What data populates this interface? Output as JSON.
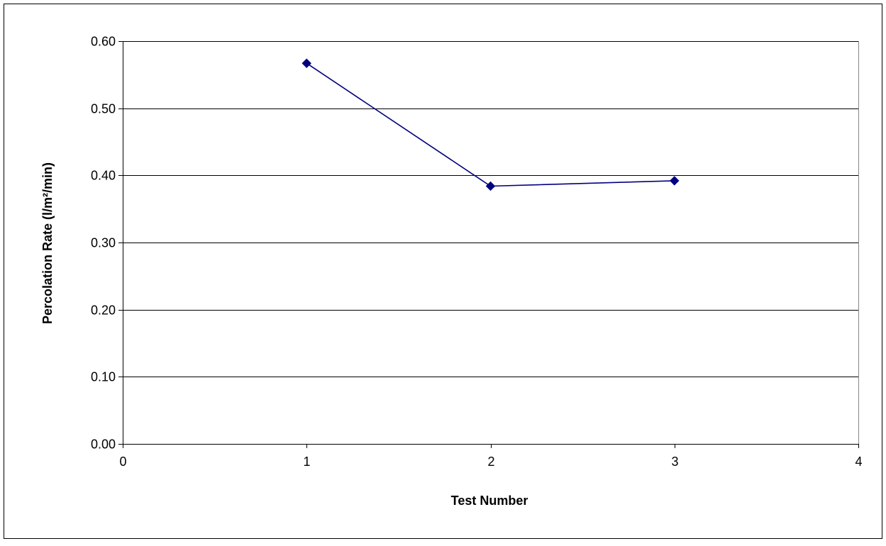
{
  "chart_data": {
    "type": "line",
    "title": "",
    "xlabel": "Test Number",
    "ylabel": "Percolation Rate (l/m²/min)",
    "xlim": [
      0,
      4
    ],
    "ylim": [
      0,
      0.6
    ],
    "x_ticks": [
      "0",
      "1",
      "2",
      "3",
      "4"
    ],
    "y_ticks": [
      "0.00",
      "0.10",
      "0.20",
      "0.30",
      "0.40",
      "0.50",
      "0.60"
    ],
    "grid": "horizontal",
    "legend": "none",
    "marker": "diamond",
    "series_color": "#000080",
    "series": [
      {
        "x": [
          1,
          2,
          3
        ],
        "values": [
          0.567,
          0.384,
          0.392
        ]
      }
    ]
  }
}
